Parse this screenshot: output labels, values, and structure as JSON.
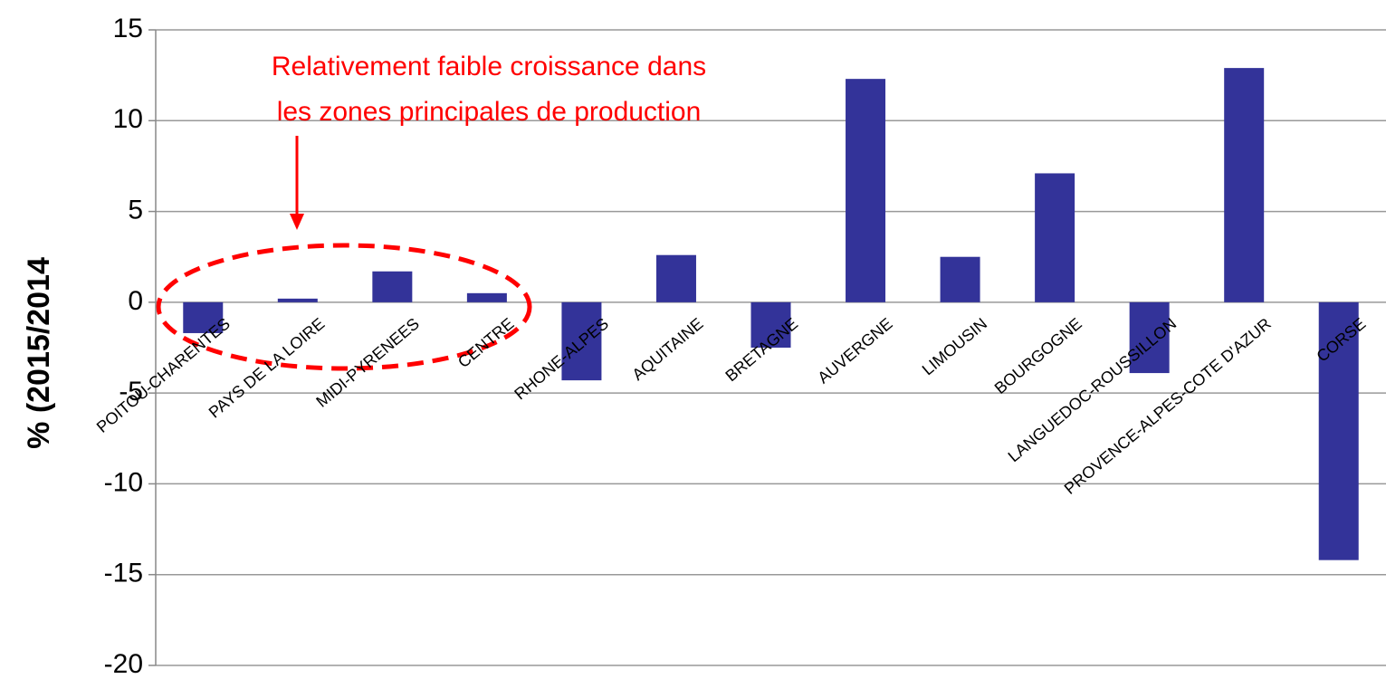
{
  "chart_data": {
    "type": "bar",
    "y_label": "% (2015/2014",
    "annotation": [
      "Relativement faible croissance dans",
      "les zones principales de production"
    ],
    "categories": [
      "POITOU-CHARENTES",
      "PAYS DE LA LOIRE",
      "MIDI-PYRENEES",
      "CENTRE",
      "RHONE-ALPES",
      "AQUITAINE",
      "BRETAGNE",
      "AUVERGNE",
      "LIMOUSIN",
      "BOURGOGNE",
      "LANGUEDOC-ROUSSILLON",
      "PROVENCE-ALPES-COTE D'AZUR",
      "CORSE"
    ],
    "values": [
      -1.7,
      0.2,
      1.7,
      0.5,
      -4.3,
      2.6,
      -2.5,
      12.3,
      2.5,
      7.1,
      -3.9,
      12.9,
      -14.2
    ],
    "color": "#333399",
    "ylim": [
      -20,
      15
    ],
    "yticks": [
      -20,
      -15,
      -10,
      -5,
      0,
      5,
      10,
      15
    ],
    "grid": true
  }
}
